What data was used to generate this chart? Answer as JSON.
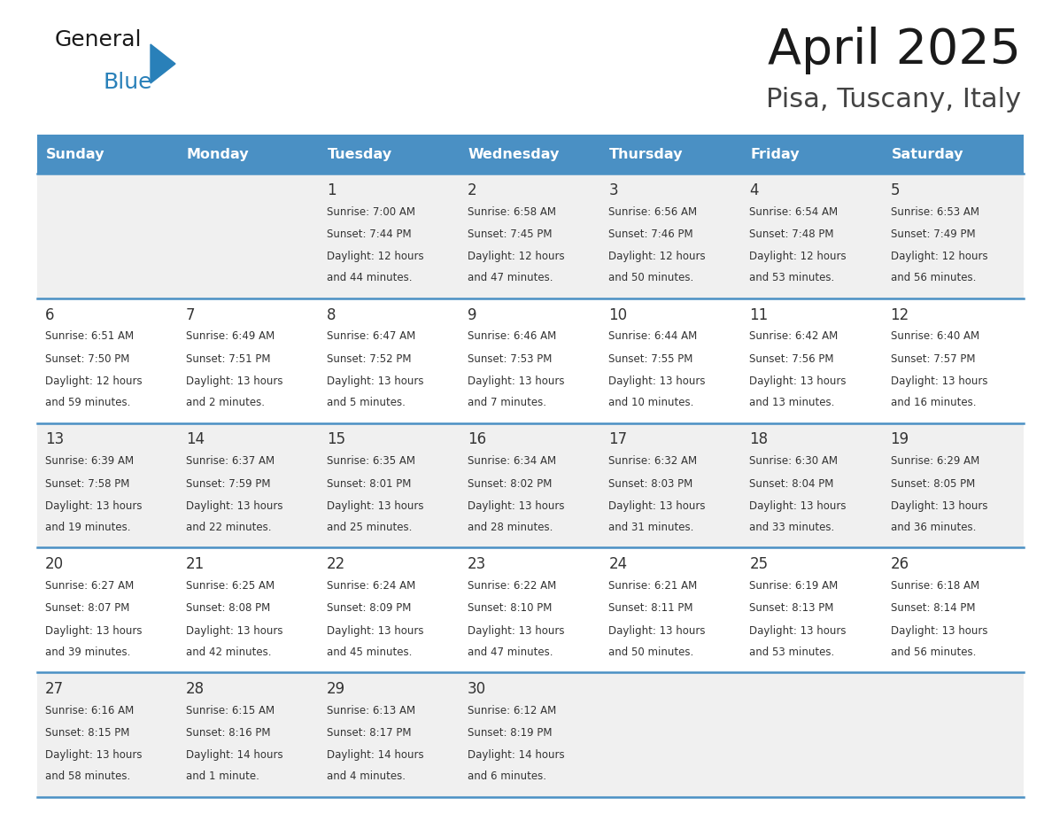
{
  "title": "April 2025",
  "subtitle": "Pisa, Tuscany, Italy",
  "days_header": [
    "Sunday",
    "Monday",
    "Tuesday",
    "Wednesday",
    "Thursday",
    "Friday",
    "Saturday"
  ],
  "header_bg": "#4A90C4",
  "header_text": "#FFFFFF",
  "row_bg_odd": "#F0F0F0",
  "row_bg_even": "#FFFFFF",
  "cell_text_color": "#333333",
  "day_num_color": "#333333",
  "border_color": "#4A90C4",
  "weeks": [
    {
      "days": [
        {
          "day": "",
          "sunrise": "",
          "sunset": "",
          "daylight": ""
        },
        {
          "day": "",
          "sunrise": "",
          "sunset": "",
          "daylight": ""
        },
        {
          "day": "1",
          "sunrise": "Sunrise: 7:00 AM",
          "sunset": "Sunset: 7:44 PM",
          "daylight": "Daylight: 12 hours\nand 44 minutes."
        },
        {
          "day": "2",
          "sunrise": "Sunrise: 6:58 AM",
          "sunset": "Sunset: 7:45 PM",
          "daylight": "Daylight: 12 hours\nand 47 minutes."
        },
        {
          "day": "3",
          "sunrise": "Sunrise: 6:56 AM",
          "sunset": "Sunset: 7:46 PM",
          "daylight": "Daylight: 12 hours\nand 50 minutes."
        },
        {
          "day": "4",
          "sunrise": "Sunrise: 6:54 AM",
          "sunset": "Sunset: 7:48 PM",
          "daylight": "Daylight: 12 hours\nand 53 minutes."
        },
        {
          "day": "5",
          "sunrise": "Sunrise: 6:53 AM",
          "sunset": "Sunset: 7:49 PM",
          "daylight": "Daylight: 12 hours\nand 56 minutes."
        }
      ]
    },
    {
      "days": [
        {
          "day": "6",
          "sunrise": "Sunrise: 6:51 AM",
          "sunset": "Sunset: 7:50 PM",
          "daylight": "Daylight: 12 hours\nand 59 minutes."
        },
        {
          "day": "7",
          "sunrise": "Sunrise: 6:49 AM",
          "sunset": "Sunset: 7:51 PM",
          "daylight": "Daylight: 13 hours\nand 2 minutes."
        },
        {
          "day": "8",
          "sunrise": "Sunrise: 6:47 AM",
          "sunset": "Sunset: 7:52 PM",
          "daylight": "Daylight: 13 hours\nand 5 minutes."
        },
        {
          "day": "9",
          "sunrise": "Sunrise: 6:46 AM",
          "sunset": "Sunset: 7:53 PM",
          "daylight": "Daylight: 13 hours\nand 7 minutes."
        },
        {
          "day": "10",
          "sunrise": "Sunrise: 6:44 AM",
          "sunset": "Sunset: 7:55 PM",
          "daylight": "Daylight: 13 hours\nand 10 minutes."
        },
        {
          "day": "11",
          "sunrise": "Sunrise: 6:42 AM",
          "sunset": "Sunset: 7:56 PM",
          "daylight": "Daylight: 13 hours\nand 13 minutes."
        },
        {
          "day": "12",
          "sunrise": "Sunrise: 6:40 AM",
          "sunset": "Sunset: 7:57 PM",
          "daylight": "Daylight: 13 hours\nand 16 minutes."
        }
      ]
    },
    {
      "days": [
        {
          "day": "13",
          "sunrise": "Sunrise: 6:39 AM",
          "sunset": "Sunset: 7:58 PM",
          "daylight": "Daylight: 13 hours\nand 19 minutes."
        },
        {
          "day": "14",
          "sunrise": "Sunrise: 6:37 AM",
          "sunset": "Sunset: 7:59 PM",
          "daylight": "Daylight: 13 hours\nand 22 minutes."
        },
        {
          "day": "15",
          "sunrise": "Sunrise: 6:35 AM",
          "sunset": "Sunset: 8:01 PM",
          "daylight": "Daylight: 13 hours\nand 25 minutes."
        },
        {
          "day": "16",
          "sunrise": "Sunrise: 6:34 AM",
          "sunset": "Sunset: 8:02 PM",
          "daylight": "Daylight: 13 hours\nand 28 minutes."
        },
        {
          "day": "17",
          "sunrise": "Sunrise: 6:32 AM",
          "sunset": "Sunset: 8:03 PM",
          "daylight": "Daylight: 13 hours\nand 31 minutes."
        },
        {
          "day": "18",
          "sunrise": "Sunrise: 6:30 AM",
          "sunset": "Sunset: 8:04 PM",
          "daylight": "Daylight: 13 hours\nand 33 minutes."
        },
        {
          "day": "19",
          "sunrise": "Sunrise: 6:29 AM",
          "sunset": "Sunset: 8:05 PM",
          "daylight": "Daylight: 13 hours\nand 36 minutes."
        }
      ]
    },
    {
      "days": [
        {
          "day": "20",
          "sunrise": "Sunrise: 6:27 AM",
          "sunset": "Sunset: 8:07 PM",
          "daylight": "Daylight: 13 hours\nand 39 minutes."
        },
        {
          "day": "21",
          "sunrise": "Sunrise: 6:25 AM",
          "sunset": "Sunset: 8:08 PM",
          "daylight": "Daylight: 13 hours\nand 42 minutes."
        },
        {
          "day": "22",
          "sunrise": "Sunrise: 6:24 AM",
          "sunset": "Sunset: 8:09 PM",
          "daylight": "Daylight: 13 hours\nand 45 minutes."
        },
        {
          "day": "23",
          "sunrise": "Sunrise: 6:22 AM",
          "sunset": "Sunset: 8:10 PM",
          "daylight": "Daylight: 13 hours\nand 47 minutes."
        },
        {
          "day": "24",
          "sunrise": "Sunrise: 6:21 AM",
          "sunset": "Sunset: 8:11 PM",
          "daylight": "Daylight: 13 hours\nand 50 minutes."
        },
        {
          "day": "25",
          "sunrise": "Sunrise: 6:19 AM",
          "sunset": "Sunset: 8:13 PM",
          "daylight": "Daylight: 13 hours\nand 53 minutes."
        },
        {
          "day": "26",
          "sunrise": "Sunrise: 6:18 AM",
          "sunset": "Sunset: 8:14 PM",
          "daylight": "Daylight: 13 hours\nand 56 minutes."
        }
      ]
    },
    {
      "days": [
        {
          "day": "27",
          "sunrise": "Sunrise: 6:16 AM",
          "sunset": "Sunset: 8:15 PM",
          "daylight": "Daylight: 13 hours\nand 58 minutes."
        },
        {
          "day": "28",
          "sunrise": "Sunrise: 6:15 AM",
          "sunset": "Sunset: 8:16 PM",
          "daylight": "Daylight: 14 hours\nand 1 minute."
        },
        {
          "day": "29",
          "sunrise": "Sunrise: 6:13 AM",
          "sunset": "Sunset: 8:17 PM",
          "daylight": "Daylight: 14 hours\nand 4 minutes."
        },
        {
          "day": "30",
          "sunrise": "Sunrise: 6:12 AM",
          "sunset": "Sunset: 8:19 PM",
          "daylight": "Daylight: 14 hours\nand 6 minutes."
        },
        {
          "day": "",
          "sunrise": "",
          "sunset": "",
          "daylight": ""
        },
        {
          "day": "",
          "sunrise": "",
          "sunset": "",
          "daylight": ""
        },
        {
          "day": "",
          "sunrise": "",
          "sunset": "",
          "daylight": ""
        }
      ]
    }
  ]
}
